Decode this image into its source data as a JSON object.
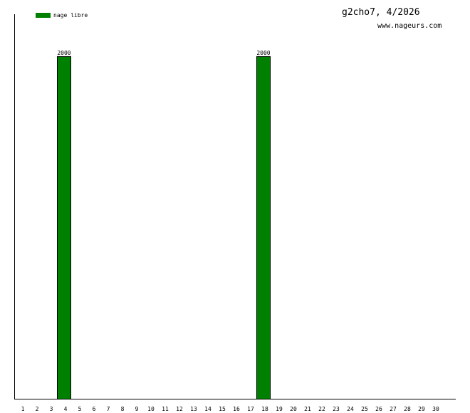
{
  "chart_data": {
    "type": "bar",
    "title": "g2cho7, 4/2026",
    "subtitle": "www.nageurs.com",
    "categories": [
      "1",
      "2",
      "3",
      "4",
      "5",
      "6",
      "7",
      "8",
      "9",
      "10",
      "11",
      "12",
      "13",
      "14",
      "15",
      "16",
      "17",
      "18",
      "19",
      "20",
      "21",
      "22",
      "23",
      "24",
      "25",
      "26",
      "27",
      "28",
      "29",
      "30"
    ],
    "series": [
      {
        "name": "nage libre",
        "color": "#008000",
        "values": [
          0,
          0,
          0,
          2000,
          0,
          0,
          0,
          0,
          0,
          0,
          0,
          0,
          0,
          0,
          0,
          0,
          0,
          2000,
          0,
          0,
          0,
          0,
          0,
          0,
          0,
          0,
          0,
          0,
          0,
          0
        ]
      }
    ],
    "data_labels": true,
    "ylim": [
      0,
      2245
    ],
    "grid": false,
    "legend": "top-left",
    "xlabel": "",
    "ylabel": ""
  }
}
